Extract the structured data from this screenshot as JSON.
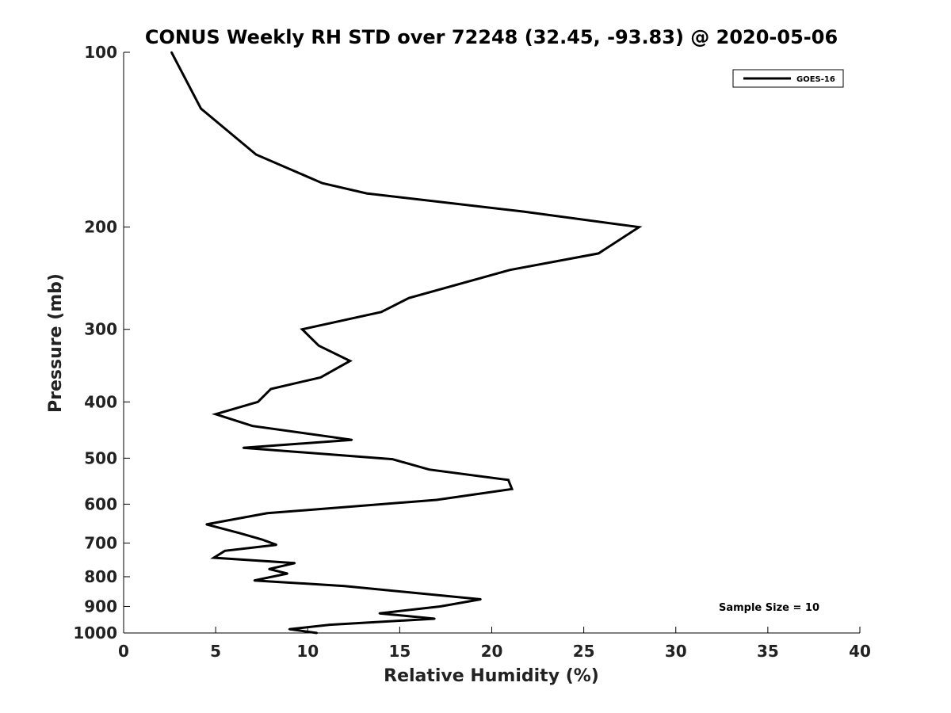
{
  "chart_data": {
    "type": "line",
    "title": "CONUS Weekly RH STD over 72248 (32.45, -93.83) @ 2020-05-06",
    "xlabel": "Relative Humidity (%)",
    "ylabel": "Pressure (mb)",
    "xlim": [
      0,
      40
    ],
    "ylim": [
      100,
      1000
    ],
    "yscale": "log",
    "y_reversed": true,
    "xticks": [
      0,
      5,
      10,
      15,
      20,
      25,
      30,
      35,
      40
    ],
    "yticks": [
      100,
      200,
      300,
      400,
      500,
      600,
      700,
      800,
      900,
      1000
    ],
    "grid": false,
    "legend_position": "top-right",
    "series": [
      {
        "name": "GOES-16",
        "color": "#000000",
        "points": [
          [
            2.6,
            100
          ],
          [
            4.2,
            125
          ],
          [
            7.2,
            150
          ],
          [
            10.8,
            168
          ],
          [
            13.2,
            175
          ],
          [
            21.7,
            188
          ],
          [
            28.0,
            200
          ],
          [
            25.8,
            222
          ],
          [
            21.0,
            237
          ],
          [
            15.5,
            265
          ],
          [
            14.0,
            280
          ],
          [
            9.7,
            300
          ],
          [
            10.6,
            320
          ],
          [
            12.3,
            340
          ],
          [
            10.7,
            363
          ],
          [
            8.0,
            380
          ],
          [
            7.3,
            400
          ],
          [
            5.0,
            420
          ],
          [
            7.0,
            440
          ],
          [
            12.4,
            465
          ],
          [
            6.5,
            480
          ],
          [
            14.6,
            502
          ],
          [
            16.6,
            523
          ],
          [
            20.9,
            545
          ],
          [
            21.1,
            565
          ],
          [
            17.0,
            590
          ],
          [
            7.8,
            622
          ],
          [
            4.5,
            650
          ],
          [
            6.3,
            673
          ],
          [
            7.5,
            690
          ],
          [
            8.3,
            705
          ],
          [
            5.5,
            722
          ],
          [
            4.9,
            742
          ],
          [
            9.3,
            758
          ],
          [
            7.9,
            776
          ],
          [
            8.9,
            790
          ],
          [
            7.1,
            812
          ],
          [
            12.0,
            830
          ],
          [
            19.4,
            875
          ],
          [
            17.2,
            900
          ],
          [
            13.9,
            925
          ],
          [
            16.9,
            945
          ],
          [
            11.2,
            968
          ],
          [
            9.0,
            985
          ],
          [
            10.5,
            1000
          ]
        ]
      }
    ],
    "annotation": "Sample Size = 10"
  }
}
